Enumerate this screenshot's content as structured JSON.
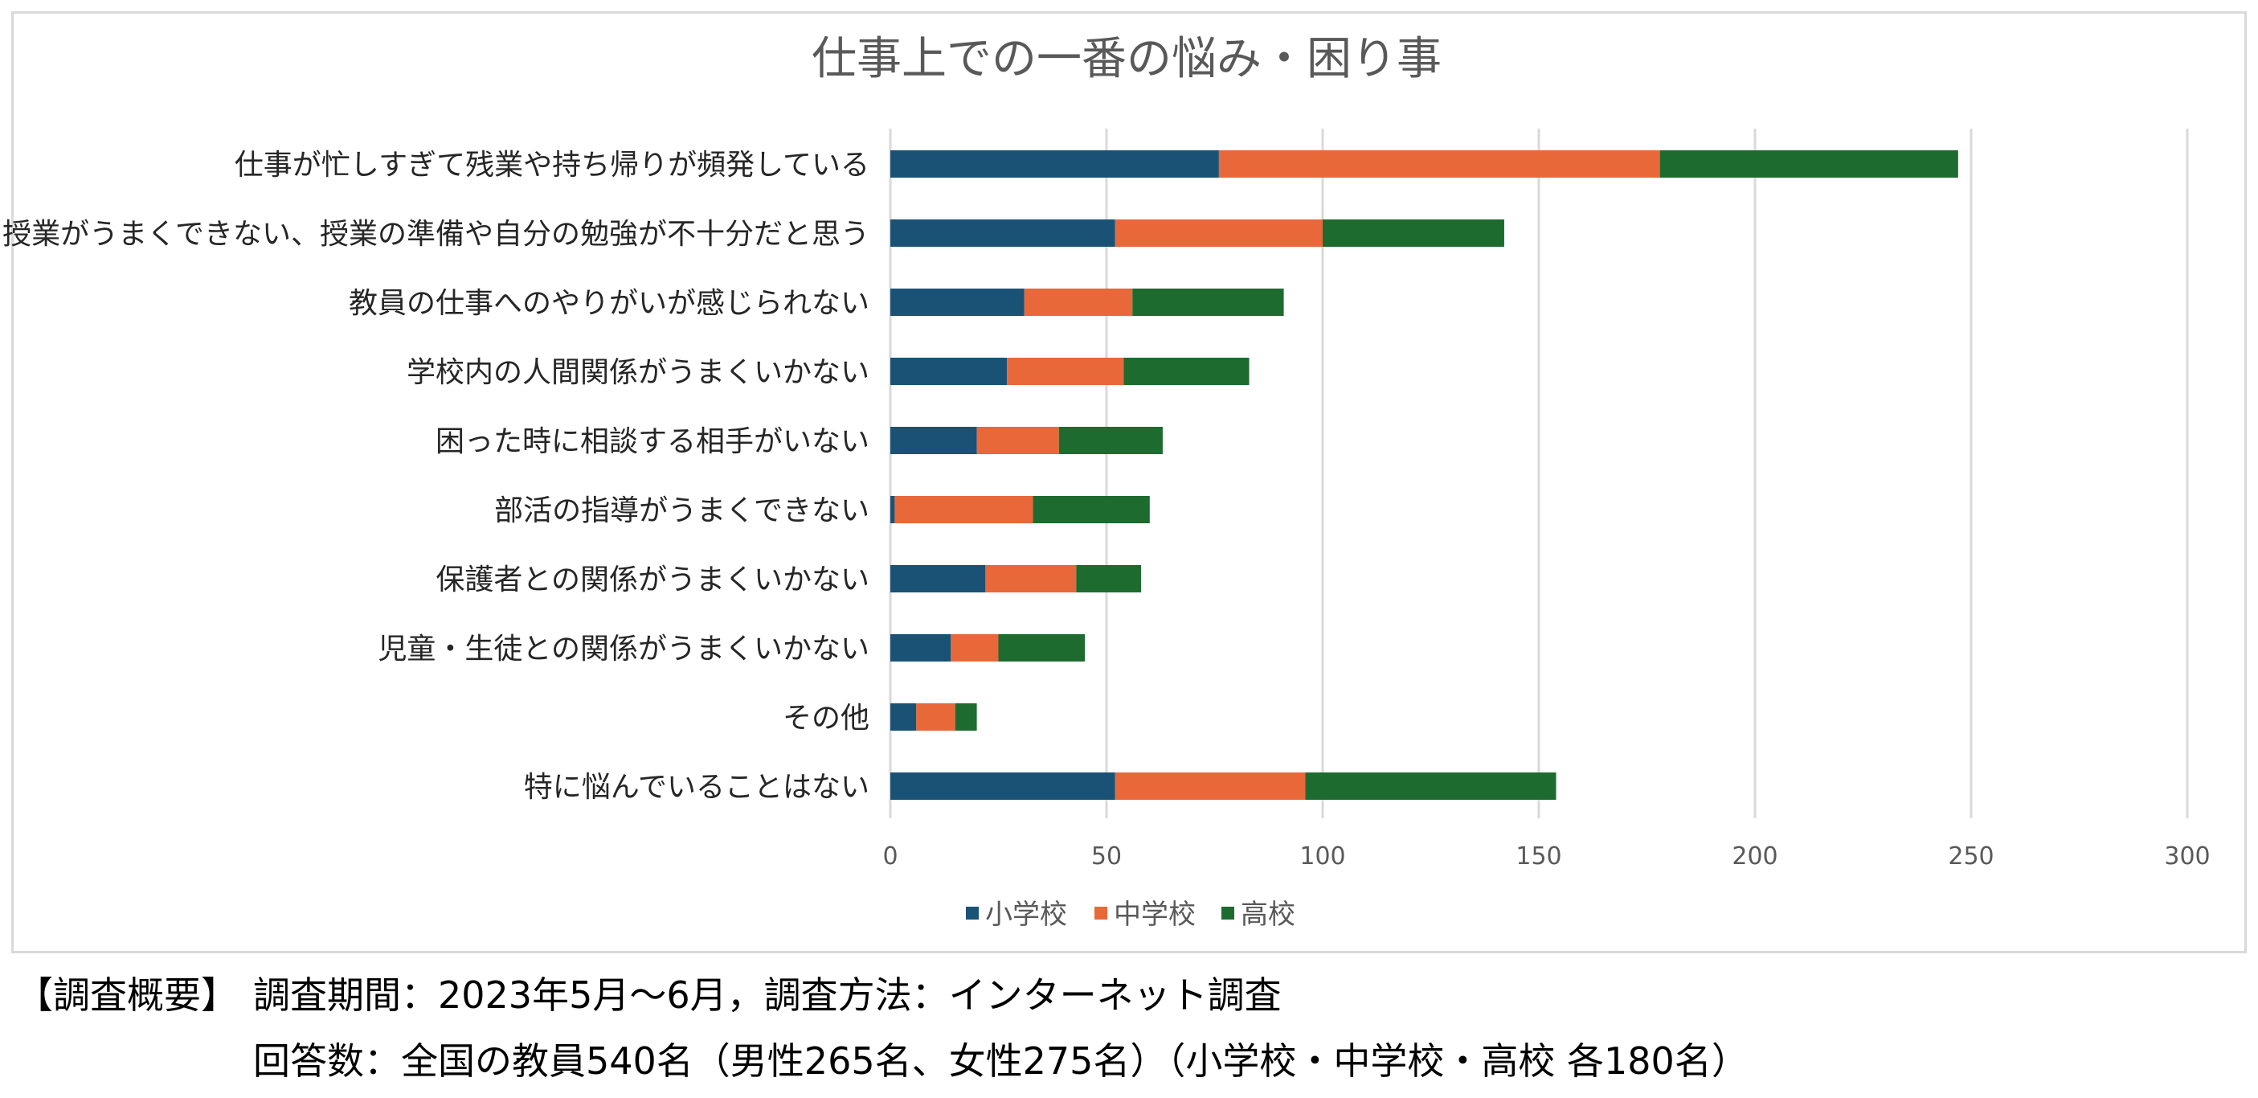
{
  "chart_data": {
    "type": "bar",
    "orientation": "horizontal",
    "stacked": true,
    "title": "仕事上での一番の悩み・困り事",
    "categories": [
      "仕事が忙しすぎて残業や持ち帰りが頻発している",
      "授業がうまくできない、授業の準備や自分の勉強が不十分だと思う",
      "教員の仕事へのやりがいが感じられない",
      "学校内の人間関係がうまくいかない",
      "困った時に相談する相手がいない",
      "部活の指導がうまくできない",
      "保護者との関係がうまくいかない",
      "児童・生徒との関係がうまくいかない",
      "その他",
      "特に悩んでいることはない"
    ],
    "series": [
      {
        "name": "小学校",
        "color": "#1a5276",
        "values": [
          76,
          52,
          31,
          27,
          20,
          1,
          22,
          14,
          6,
          52
        ]
      },
      {
        "name": "中学校",
        "color": "#e8683a",
        "values": [
          102,
          48,
          25,
          27,
          19,
          32,
          21,
          11,
          9,
          44
        ]
      },
      {
        "name": "高校",
        "color": "#1e6b30",
        "values": [
          69,
          42,
          35,
          29,
          24,
          27,
          15,
          20,
          5,
          58
        ]
      }
    ],
    "xlim": [
      0,
      300
    ],
    "xticks": [
      "0",
      "50",
      "100",
      "150",
      "200",
      "250",
      "300"
    ],
    "grid": true,
    "legend_position": "bottom"
  },
  "notes": {
    "label": "【調査概要】",
    "line1": "調査期間：2023年5月～6月，調査方法：インターネット調査",
    "line2": "回答数：全国の教員540名（男性265名、女性275名）（小学校・中学校・高校  各180名）"
  }
}
